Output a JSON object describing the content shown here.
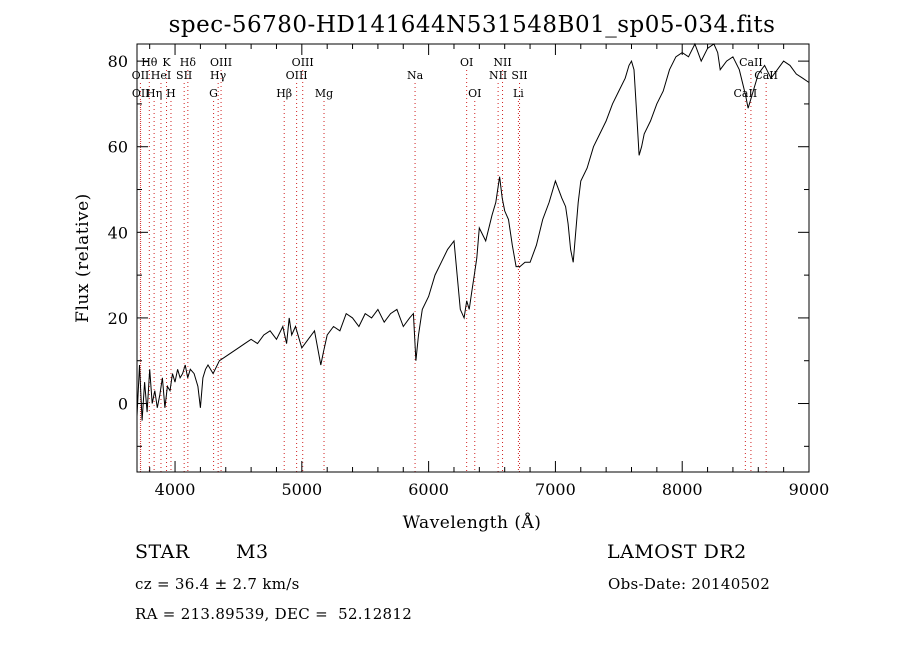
{
  "chart_data": {
    "type": "line",
    "title": "spec-56780-HD141644N531548B01_sp05-034.fits",
    "xlabel": "Wavelength (Å)",
    "ylabel": "Flux (relative)",
    "xlim": [
      3700,
      9000
    ],
    "ylim": [
      -16,
      84
    ],
    "xticks": [
      "4000",
      "5000",
      "6000",
      "7000",
      "8000",
      "9000"
    ],
    "yticks": [
      "0",
      "20",
      "40",
      "60",
      "80"
    ],
    "grid": false,
    "series": [
      {
        "x": [
          3700,
          3720,
          3740,
          3760,
          3780,
          3800,
          3820,
          3840,
          3860,
          3880,
          3900,
          3920,
          3940,
          3960,
          3980,
          4000,
          4020,
          4040,
          4060,
          4080,
          4100,
          4120,
          4150,
          4180,
          4200,
          4220,
          4240,
          4260,
          4300,
          4350,
          4400,
          4450,
          4500,
          4550,
          4600,
          4650,
          4700,
          4750,
          4800,
          4850,
          4880,
          4900,
          4920,
          4950,
          5000,
          5050,
          5100,
          5150,
          5170,
          5200,
          5250,
          5300,
          5350,
          5400,
          5450,
          5500,
          5550,
          5600,
          5650,
          5700,
          5750,
          5800,
          5850,
          5880,
          5900,
          5920,
          5950,
          6000,
          6050,
          6100,
          6150,
          6200,
          6250,
          6280,
          6300,
          6320,
          6340,
          6360,
          6380,
          6400,
          6450,
          6500,
          6530,
          6560,
          6580,
          6600,
          6630,
          6660,
          6690,
          6720,
          6760,
          6800,
          6850,
          6900,
          6950,
          7000,
          7050,
          7080,
          7100,
          7120,
          7140,
          7160,
          7180,
          7200,
          7250,
          7300,
          7350,
          7400,
          7450,
          7500,
          7550,
          7580,
          7600,
          7620,
          7640,
          7660,
          7680,
          7700,
          7750,
          7800,
          7850,
          7900,
          7950,
          8000,
          8050,
          8100,
          8150,
          8200,
          8250,
          8280,
          8300,
          8350,
          8400,
          8450,
          8500,
          8520,
          8540,
          8560,
          8600,
          8650,
          8700,
          8750,
          8800,
          8850,
          8900,
          8950,
          9000
        ],
        "values": [
          -3,
          9,
          -4,
          5,
          -2,
          8,
          0,
          3,
          -1,
          2,
          6,
          -1,
          4,
          3,
          7,
          5,
          8,
          6,
          7,
          9,
          6,
          8,
          7,
          4,
          -1,
          6,
          8,
          9,
          7,
          10,
          11,
          12,
          13,
          14,
          15,
          14,
          16,
          17,
          15,
          18,
          14,
          20,
          16,
          18,
          13,
          15,
          17,
          9,
          12,
          16,
          18,
          17,
          21,
          20,
          18,
          21,
          20,
          22,
          19,
          21,
          22,
          18,
          20,
          21,
          10,
          16,
          22,
          25,
          30,
          33,
          36,
          38,
          22,
          20,
          24,
          22,
          26,
          30,
          34,
          41,
          38,
          44,
          47,
          53,
          48,
          45,
          43,
          37,
          32,
          32,
          33,
          33,
          37,
          43,
          47,
          52,
          48,
          46,
          42,
          36,
          33,
          40,
          47,
          52,
          55,
          60,
          63,
          66,
          70,
          73,
          76,
          79,
          80,
          78,
          68,
          58,
          60,
          63,
          66,
          70,
          73,
          78,
          81,
          82,
          81,
          84,
          80,
          83,
          84,
          82,
          78,
          80,
          81,
          78,
          72,
          69,
          71,
          73,
          77,
          79,
          76,
          78,
          80,
          79,
          77,
          76,
          75
        ]
      }
    ],
    "line_markers": [
      {
        "label": "Hθ",
        "wavelength": 3797,
        "row": 1
      },
      {
        "label": "K",
        "wavelength": 3933,
        "row": 1
      },
      {
        "label": "Hδ",
        "wavelength": 4101,
        "row": 1
      },
      {
        "label": "OIII",
        "wavelength": 4363,
        "row": 1
      },
      {
        "label": "OIII",
        "wavelength": 5007,
        "row": 1
      },
      {
        "label": "Na",
        "wavelength": 5893,
        "row": 2
      },
      {
        "label": "OI",
        "wavelength": 6300,
        "row": 1
      },
      {
        "label": "NII",
        "wavelength": 6583,
        "row": 1
      },
      {
        "label": "CaII",
        "wavelength": 8542,
        "row": 1
      },
      {
        "label": "OII",
        "wavelength": 3727,
        "row": 2
      },
      {
        "label": "HeI",
        "wavelength": 3889,
        "row": 2
      },
      {
        "label": "SII",
        "wavelength": 4072,
        "row": 2
      },
      {
        "label": "Hγ",
        "wavelength": 4340,
        "row": 2
      },
      {
        "label": "OIII",
        "wavelength": 4959,
        "row": 2
      },
      {
        "label": "NII",
        "wavelength": 6548,
        "row": 2
      },
      {
        "label": "SII",
        "wavelength": 6717,
        "row": 2
      },
      {
        "label": "CaII",
        "wavelength": 8662,
        "row": 2
      },
      {
        "label": "OII",
        "wavelength": 3729,
        "row": 3
      },
      {
        "label": "Hη",
        "wavelength": 3835,
        "row": 3
      },
      {
        "label": "H",
        "wavelength": 3968,
        "row": 3
      },
      {
        "label": "G",
        "wavelength": 4304,
        "row": 3
      },
      {
        "label": "Hβ",
        "wavelength": 4861,
        "row": 3
      },
      {
        "label": "Mg",
        "wavelength": 5175,
        "row": 3
      },
      {
        "label": "OI",
        "wavelength": 6364,
        "row": 3
      },
      {
        "label": "Li",
        "wavelength": 6708,
        "row": 3
      },
      {
        "label": "CaII",
        "wavelength": 8498,
        "row": 3
      }
    ]
  },
  "info": {
    "class_label": "STAR",
    "subclass": "M3",
    "survey": "LAMOST DR2",
    "redshift": "cz = 36.4 ± 2.7 km/s",
    "obs_date": "Obs-Date: 20140502",
    "coords": "RA = 213.89539, DEC =  52.12812"
  }
}
